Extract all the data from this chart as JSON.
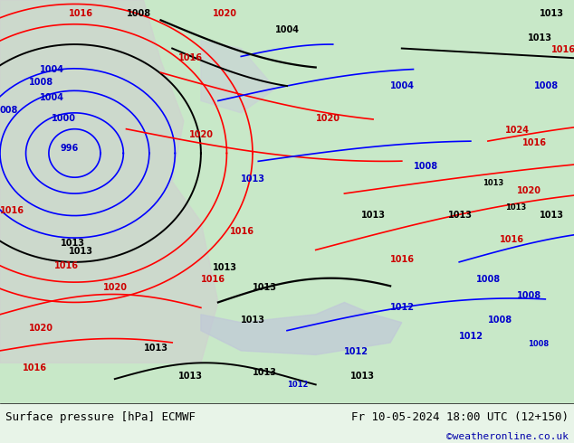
{
  "title_left": "Surface pressure [hPa] ECMWF",
  "title_right": "Fr 10-05-2024 18:00 UTC (12+150)",
  "copyright": "©weatheronline.co.uk",
  "bg_color": "#e8f4e8",
  "land_color": "#c8e8c8",
  "sea_color": "#ddeeff",
  "text_color_black": "#000000",
  "text_color_blue": "#0000cc",
  "text_color_red": "#cc0000",
  "footer_bg": "#ffffff",
  "figsize": [
    6.34,
    4.9
  ],
  "dpi": 100
}
